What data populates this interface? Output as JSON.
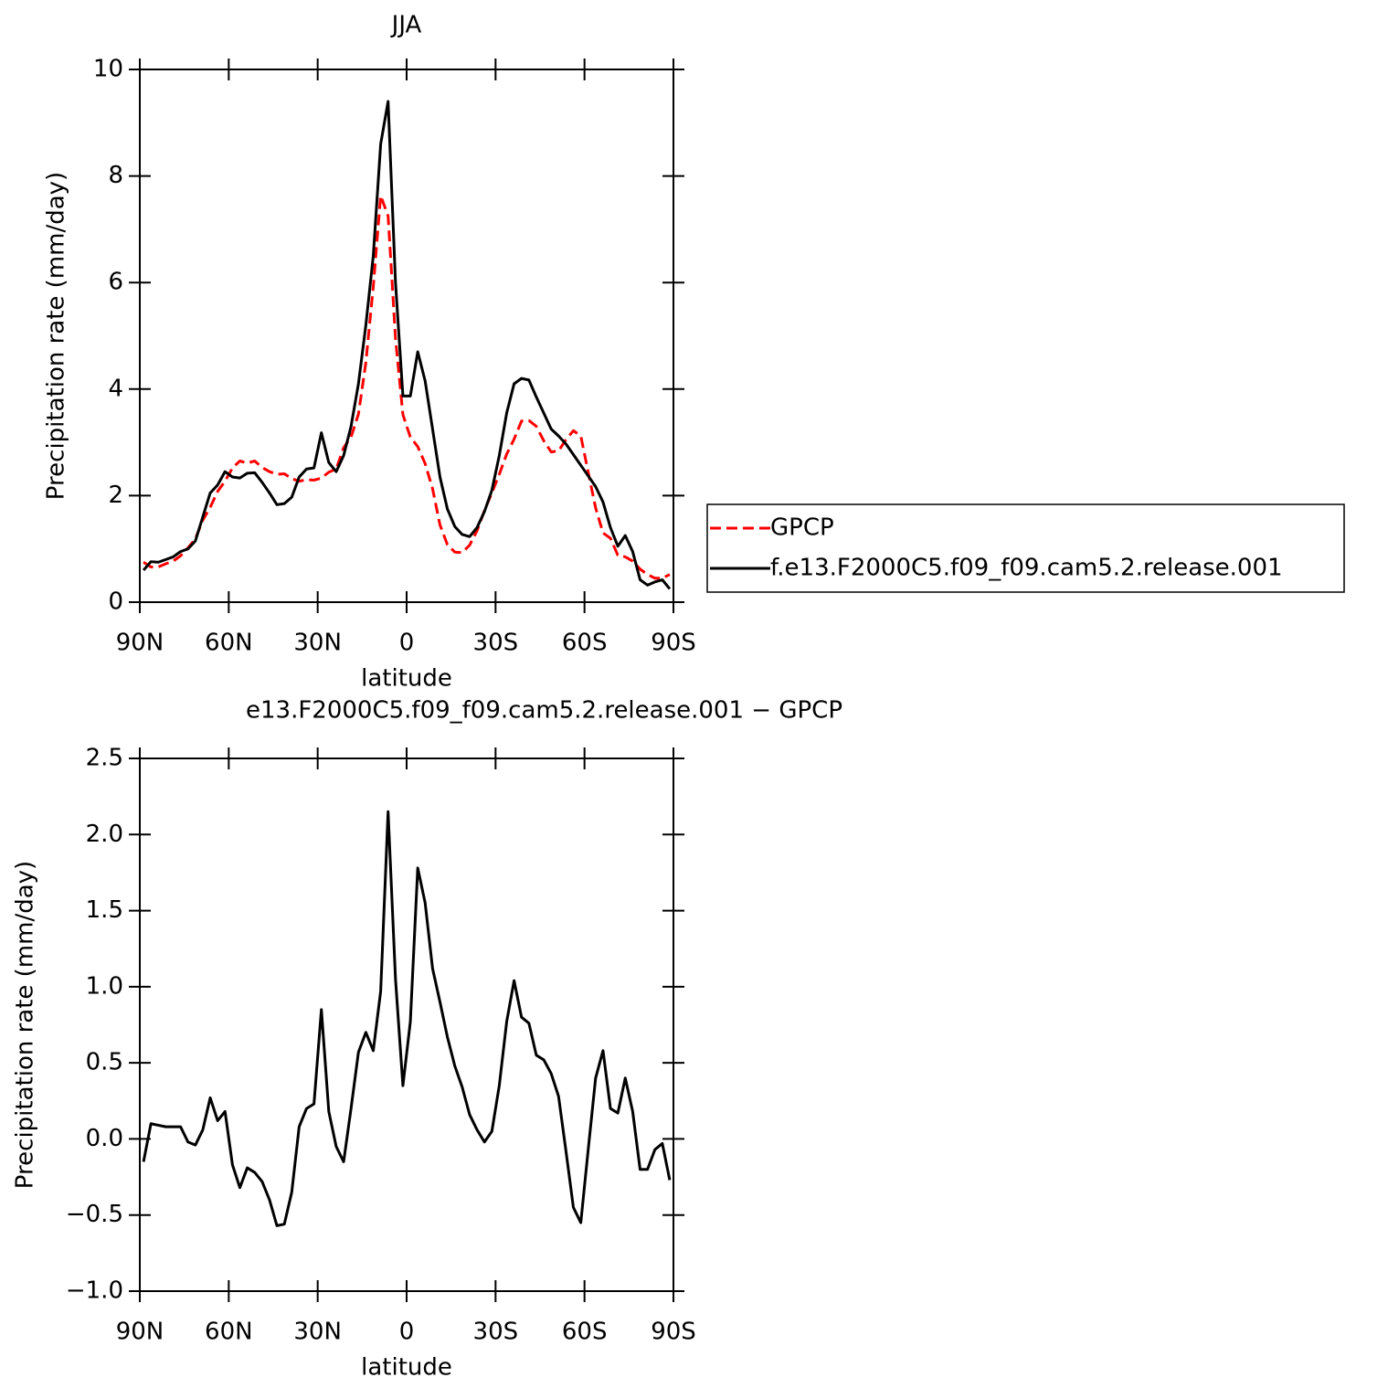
{
  "chart_data": [
    {
      "type": "line",
      "title": "JJA",
      "xlabel": "latitude",
      "ylabel": "Precipitation rate (mm/day)",
      "x": [
        88.75,
        86.25,
        83.75,
        81.25,
        78.75,
        76.25,
        73.75,
        71.25,
        68.75,
        66.25,
        63.75,
        61.25,
        58.75,
        56.25,
        53.75,
        51.25,
        48.75,
        46.25,
        43.75,
        41.25,
        38.75,
        36.25,
        33.75,
        31.25,
        28.75,
        26.25,
        23.75,
        21.25,
        18.75,
        16.25,
        13.75,
        11.25,
        8.75,
        6.25,
        3.75,
        1.25,
        -1.25,
        -3.75,
        -6.25,
        -8.75,
        -11.25,
        -13.75,
        -16.25,
        -18.75,
        -21.25,
        -23.75,
        -26.25,
        -28.75,
        -31.25,
        -33.75,
        -36.25,
        -38.75,
        -41.25,
        -43.75,
        -46.25,
        -48.75,
        -51.25,
        -53.75,
        -56.25,
        -58.75,
        -61.25,
        -63.75,
        -66.25,
        -68.75,
        -71.25,
        -73.75,
        -76.25,
        -78.75,
        -81.25,
        -83.75,
        -86.25,
        -88.75
      ],
      "xlim": [
        90,
        -90
      ],
      "xticks": [
        {
          "value": 90,
          "label": "90N"
        },
        {
          "value": 60,
          "label": "60N"
        },
        {
          "value": 30,
          "label": "30N"
        },
        0,
        {
          "value": -30,
          "label": "30S"
        },
        {
          "value": -60,
          "label": "60S"
        },
        {
          "value": -90,
          "label": "90S"
        }
      ],
      "ylim": [
        0,
        10
      ],
      "yticks": [
        0,
        2,
        4,
        6,
        8,
        10
      ],
      "legend_position": "right",
      "series": [
        {
          "name": "GPCP",
          "color": "#ff0000",
          "style": "dashed",
          "values": [
            0.75,
            0.66,
            0.66,
            0.72,
            0.77,
            0.87,
            1.02,
            1.19,
            1.54,
            1.78,
            2.08,
            2.27,
            2.52,
            2.65,
            2.61,
            2.65,
            2.53,
            2.45,
            2.4,
            2.41,
            2.32,
            2.27,
            2.3,
            2.29,
            2.33,
            2.44,
            2.5,
            2.9,
            3.1,
            3.53,
            4.5,
            5.92,
            7.63,
            7.25,
            4.95,
            3.52,
            3.1,
            2.92,
            2.6,
            2.13,
            1.45,
            1.08,
            0.94,
            0.93,
            1.07,
            1.34,
            1.72,
            2.05,
            2.4,
            2.78,
            3.06,
            3.4,
            3.41,
            3.3,
            3.03,
            2.82,
            2.84,
            3.05,
            3.22,
            3.12,
            2.44,
            1.77,
            1.3,
            1.2,
            0.88,
            0.85,
            0.77,
            0.62,
            0.52,
            0.45,
            0.45,
            0.52
          ]
        },
        {
          "name": "f.e13.F2000C5.f09_f09.cam5.2.release.001",
          "color": "#000000",
          "style": "solid",
          "values": [
            0.6,
            0.76,
            0.75,
            0.8,
            0.85,
            0.95,
            1.0,
            1.15,
            1.6,
            2.05,
            2.2,
            2.45,
            2.35,
            2.33,
            2.42,
            2.43,
            2.25,
            2.05,
            1.83,
            1.85,
            1.97,
            2.35,
            2.5,
            2.52,
            3.18,
            2.62,
            2.45,
            2.75,
            3.3,
            4.1,
            5.2,
            6.5,
            8.6,
            9.4,
            6.0,
            3.87,
            3.87,
            4.7,
            4.15,
            3.25,
            2.35,
            1.75,
            1.42,
            1.27,
            1.23,
            1.4,
            1.7,
            2.1,
            2.75,
            3.55,
            4.1,
            4.2,
            4.17,
            3.85,
            3.55,
            3.25,
            3.12,
            2.97,
            2.77,
            2.57,
            2.37,
            2.17,
            1.88,
            1.4,
            1.05,
            1.25,
            0.95,
            0.42,
            0.32,
            0.38,
            0.42,
            0.25
          ]
        }
      ]
    },
    {
      "type": "line",
      "title": "e13.F2000C5.f09_f09.cam5.2.release.001 − GPCP",
      "xlabel": "latitude",
      "ylabel": "Precipitation rate (mm/day)",
      "x": [
        88.75,
        86.25,
        83.75,
        81.25,
        78.75,
        76.25,
        73.75,
        71.25,
        68.75,
        66.25,
        63.75,
        61.25,
        58.75,
        56.25,
        53.75,
        51.25,
        48.75,
        46.25,
        43.75,
        41.25,
        38.75,
        36.25,
        33.75,
        31.25,
        28.75,
        26.25,
        23.75,
        21.25,
        18.75,
        16.25,
        13.75,
        11.25,
        8.75,
        6.25,
        3.75,
        1.25,
        -1.25,
        -3.75,
        -6.25,
        -8.75,
        -11.25,
        -13.75,
        -16.25,
        -18.75,
        -21.25,
        -23.75,
        -26.25,
        -28.75,
        -31.25,
        -33.75,
        -36.25,
        -38.75,
        -41.25,
        -43.75,
        -46.25,
        -48.75,
        -51.25,
        -53.75,
        -56.25,
        -58.75,
        -61.25,
        -63.75,
        -66.25,
        -68.75,
        -71.25,
        -73.75,
        -76.25,
        -78.75,
        -81.25,
        -83.75,
        -86.25,
        -88.75
      ],
      "xlim": [
        90,
        -90
      ],
      "xticks": [
        {
          "value": 90,
          "label": "90N"
        },
        {
          "value": 60,
          "label": "60N"
        },
        {
          "value": 30,
          "label": "30N"
        },
        0,
        {
          "value": -30,
          "label": "30S"
        },
        {
          "value": -60,
          "label": "60S"
        },
        {
          "value": -90,
          "label": "90S"
        }
      ],
      "ylim": [
        -1,
        2.5
      ],
      "yticks": [
        {
          "value": -1,
          "label": "−1.0"
        },
        {
          "value": -0.5,
          "label": "−0.5"
        },
        {
          "value": 0,
          "label": "0.0"
        },
        0.5,
        {
          "value": 1,
          "label": "1.0"
        },
        1.5,
        {
          "value": 2,
          "label": "2.0"
        },
        2.5
      ],
      "color": "#000000",
      "values": [
        -0.15,
        0.1,
        0.09,
        0.08,
        0.08,
        0.08,
        -0.02,
        -0.04,
        0.06,
        0.27,
        0.12,
        0.18,
        -0.17,
        -0.32,
        -0.19,
        -0.22,
        -0.28,
        -0.4,
        -0.57,
        -0.56,
        -0.35,
        0.08,
        0.2,
        0.23,
        0.85,
        0.18,
        -0.05,
        -0.15,
        0.2,
        0.57,
        0.7,
        0.58,
        0.97,
        2.15,
        1.05,
        0.35,
        0.77,
        1.78,
        1.55,
        1.12,
        0.9,
        0.67,
        0.48,
        0.34,
        0.16,
        0.06,
        -0.02,
        0.05,
        0.35,
        0.77,
        1.04,
        0.8,
        0.76,
        0.55,
        0.52,
        0.43,
        0.28,
        -0.08,
        -0.45,
        -0.55,
        -0.07,
        0.4,
        0.58,
        0.2,
        0.17,
        0.4,
        0.18,
        -0.2,
        -0.2,
        -0.07,
        -0.03,
        -0.27
      ]
    }
  ]
}
